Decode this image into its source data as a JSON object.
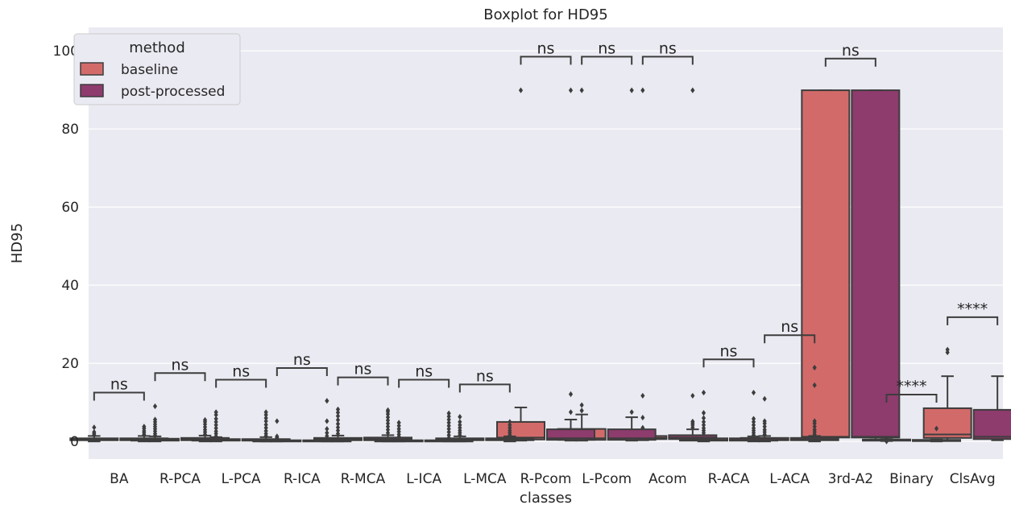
{
  "chart_data": {
    "type": "box",
    "title": "Boxplot for HD95",
    "xlabel": "classes",
    "ylabel": "HD95",
    "ylim": [
      -4.5,
      106
    ],
    "yticks": [
      0,
      20,
      40,
      60,
      80,
      100
    ],
    "grid": true,
    "legend": {
      "title": "method",
      "placement": "top-left",
      "entries": [
        "baseline",
        "post-processed"
      ]
    },
    "colors": {
      "baseline": "#d36a6a",
      "post-processed": "#8e3b6d",
      "plot_bg": "#eaeaf2",
      "edge": "#3d3d3d"
    },
    "categories": [
      "BA",
      "R-PCA",
      "L-PCA",
      "R-ICA",
      "R-MCA",
      "L-ICA",
      "L-MCA",
      "R-Pcom",
      "L-Pcom",
      "Acom",
      "R-ACA",
      "L-ACA",
      "3rd-A2",
      "Binary",
      "ClsAvg"
    ],
    "series": [
      {
        "name": "baseline",
        "boxes": [
          {
            "q1": 0.3,
            "median": 0.5,
            "q3": 0.8,
            "whislo": 0,
            "whishi": 1.4,
            "outliers": [
              1.6,
              2.0,
              2.4,
              3.6
            ]
          },
          {
            "q1": 0.2,
            "median": 0.4,
            "q3": 0.7,
            "whislo": 0,
            "whishi": 1.3,
            "outliers": [
              1.5,
              2.0,
              2.6,
              3.2,
              3.8,
              4.4,
              5.0,
              5.6,
              9.0
            ]
          },
          {
            "q1": 0.2,
            "median": 0.4,
            "q3": 0.6,
            "whislo": 0,
            "whishi": 1.1,
            "outliers": [
              1.3,
              2.0,
              2.6,
              3.4,
              4.2,
              5.0,
              5.8,
              6.8,
              7.5
            ]
          },
          {
            "q1": 0.1,
            "median": 0.2,
            "q3": 0.3,
            "whislo": 0,
            "whishi": 0.5,
            "outliers": [
              0.7,
              1.0,
              1.3,
              5.2
            ]
          },
          {
            "q1": 0.3,
            "median": 0.6,
            "q3": 0.9,
            "whislo": 0,
            "whishi": 1.5,
            "outliers": [
              2.0,
              2.8,
              3.6,
              4.5,
              5.5,
              6.5,
              7.4,
              8.2
            ]
          },
          {
            "q1": 0.1,
            "median": 0.2,
            "q3": 0.3,
            "whislo": 0,
            "whishi": 0.5,
            "outliers": [
              0.8,
              1.2,
              1.8,
              2.5,
              3.2,
              4.0,
              4.8
            ]
          },
          {
            "q1": 0.3,
            "median": 0.5,
            "q3": 0.8,
            "whislo": 0,
            "whishi": 1.3,
            "outliers": [
              1.6,
              2.2,
              2.8,
              3.5,
              4.2,
              5.0,
              6.3
            ]
          },
          {
            "q1": 0.5,
            "median": 1.0,
            "q3": 5.0,
            "whislo": 0.2,
            "whishi": 8.7,
            "outliers": [
              89.9
            ]
          },
          {
            "q1": 0.4,
            "median": 0.8,
            "q3": 3.2,
            "whislo": 0.2,
            "whishi": 6.9,
            "outliers": [
              7.9,
              9.3,
              89.9
            ]
          },
          {
            "q1": 0.6,
            "median": 0.9,
            "q3": 1.4,
            "whislo": 0.3,
            "whishi": 2.6,
            "outliers": [
              2.9,
              3.5,
              6.1,
              11.7,
              89.9
            ]
          },
          {
            "q1": 0.2,
            "median": 0.4,
            "q3": 0.8,
            "whislo": 0,
            "whishi": 1.3,
            "outliers": [
              1.6,
              2.2,
              2.8,
              3.4,
              4.2,
              5.0,
              6.0,
              7.3,
              12.5
            ]
          },
          {
            "q1": 0.3,
            "median": 0.5,
            "q3": 0.9,
            "whislo": 0,
            "whishi": 1.4,
            "outliers": [
              1.8,
              2.4,
              3.0,
              3.8,
              4.6,
              5.2,
              10.9
            ]
          },
          {
            "q1": 1.0,
            "median": 1.2,
            "q3": 89.9,
            "whislo": 0.5,
            "whishi": 89.9,
            "outliers": []
          },
          {
            "q1": 0.2,
            "median": 0.3,
            "q3": 0.5,
            "whislo": 0.1,
            "whishi": 0.6,
            "outliers": [
              0.0,
              0.9,
              3.2
            ]
          },
          {
            "q1": 0.9,
            "median": 1.8,
            "q3": 8.5,
            "whislo": 0.3,
            "whishi": 16.7,
            "outliers": [
              22.8,
              23.5
            ]
          }
        ]
      },
      {
        "name": "post-processed",
        "boxes": [
          {
            "q1": 0.3,
            "median": 0.5,
            "q3": 0.8,
            "whislo": 0,
            "whishi": 1.4,
            "outliers": [
              1.7,
              2.2,
              2.7,
              3.3,
              3.8
            ]
          },
          {
            "q1": 0.3,
            "median": 0.5,
            "q3": 0.9,
            "whislo": 0,
            "whishi": 1.5,
            "outliers": [
              1.8,
              2.4,
              3.0,
              3.7,
              4.4,
              5.0,
              5.5
            ]
          },
          {
            "q1": 0.2,
            "median": 0.4,
            "q3": 0.6,
            "whislo": 0,
            "whishi": 1.1,
            "outliers": [
              1.4,
              2.0,
              2.7,
              3.5,
              4.3,
              5.2,
              6.0,
              6.8,
              7.5
            ]
          },
          {
            "q1": 0.1,
            "median": 0.2,
            "q3": 0.3,
            "whislo": 0,
            "whishi": 0.5,
            "outliers": [
              0.8,
              1.4,
              2.2,
              3.2,
              5.2,
              10.4
            ]
          },
          {
            "q1": 0.3,
            "median": 0.6,
            "q3": 1.0,
            "whislo": 0,
            "whishi": 1.6,
            "outliers": [
              2.2,
              3.0,
              3.8,
              4.6,
              5.4,
              6.2,
              7.0,
              7.6,
              8.0
            ]
          },
          {
            "q1": 0.1,
            "median": 0.2,
            "q3": 0.3,
            "whislo": 0,
            "whishi": 0.5,
            "outliers": [
              0.9,
              1.6,
              2.4,
              3.2,
              4.0,
              4.8,
              5.6,
              6.4,
              7.2
            ]
          },
          {
            "q1": 0.3,
            "median": 0.5,
            "q3": 0.8,
            "whislo": 0,
            "whishi": 1.3,
            "outliers": [
              1.6,
              2.2,
              2.8,
              3.5,
              4.2,
              5.0
            ]
          },
          {
            "q1": 0.4,
            "median": 0.8,
            "q3": 3.1,
            "whislo": 0.2,
            "whishi": 5.6,
            "outliers": [
              7.5,
              12.1,
              89.9
            ]
          },
          {
            "q1": 0.4,
            "median": 0.8,
            "q3": 3.1,
            "whislo": 0.2,
            "whishi": 6.2,
            "outliers": [
              7.5,
              89.9
            ]
          },
          {
            "q1": 0.6,
            "median": 1.0,
            "q3": 1.6,
            "whislo": 0.3,
            "whishi": 3.1,
            "outliers": [
              3.6,
              4.2,
              4.7,
              5.1,
              11.7,
              89.9
            ]
          },
          {
            "q1": 0.2,
            "median": 0.4,
            "q3": 0.8,
            "whislo": 0,
            "whishi": 1.3,
            "outliers": [
              1.6,
              2.2,
              2.8,
              3.4,
              4.2,
              5.0,
              5.8,
              12.5
            ]
          },
          {
            "q1": 0.3,
            "median": 0.5,
            "q3": 0.9,
            "whislo": 0,
            "whishi": 1.4,
            "outliers": [
              1.8,
              2.4,
              3.0,
              3.8,
              4.6,
              5.2,
              14.4,
              18.9
            ]
          },
          {
            "q1": 1.0,
            "median": 1.2,
            "q3": 89.9,
            "whislo": 0.5,
            "whishi": 89.9,
            "outliers": []
          },
          {
            "q1": 0.1,
            "median": 0.2,
            "q3": 0.4,
            "whislo": 0,
            "whishi": 0.5,
            "outliers": [
              3.3
            ]
          },
          {
            "q1": 0.6,
            "median": 1.2,
            "q3": 8.1,
            "whislo": 0.3,
            "whishi": 16.7,
            "outliers": []
          }
        ]
      }
    ],
    "annotations": [
      {
        "category": "BA",
        "text": "ns",
        "y": 12.5
      },
      {
        "category": "R-PCA",
        "text": "ns",
        "y": 17.5
      },
      {
        "category": "L-PCA",
        "text": "ns",
        "y": 15.8
      },
      {
        "category": "R-ICA",
        "text": "ns",
        "y": 18.8
      },
      {
        "category": "R-MCA",
        "text": "ns",
        "y": 16.4
      },
      {
        "category": "L-ICA",
        "text": "ns",
        "y": 15.8
      },
      {
        "category": "L-MCA",
        "text": "ns",
        "y": 14.6
      },
      {
        "category": "R-Pcom",
        "text": "ns",
        "y": 98.5
      },
      {
        "category": "L-Pcom",
        "text": "ns",
        "y": 98.5
      },
      {
        "category": "Acom",
        "text": "ns",
        "y": 98.5
      },
      {
        "category": "R-ACA",
        "text": "ns",
        "y": 21.0
      },
      {
        "category": "L-ACA",
        "text": "ns",
        "y": 27.2
      },
      {
        "category": "3rd-A2",
        "text": "ns",
        "y": 98.0
      },
      {
        "category": "Binary",
        "text": "****",
        "y": 12.0
      },
      {
        "category": "ClsAvg",
        "text": "****",
        "y": 31.8
      }
    ]
  }
}
